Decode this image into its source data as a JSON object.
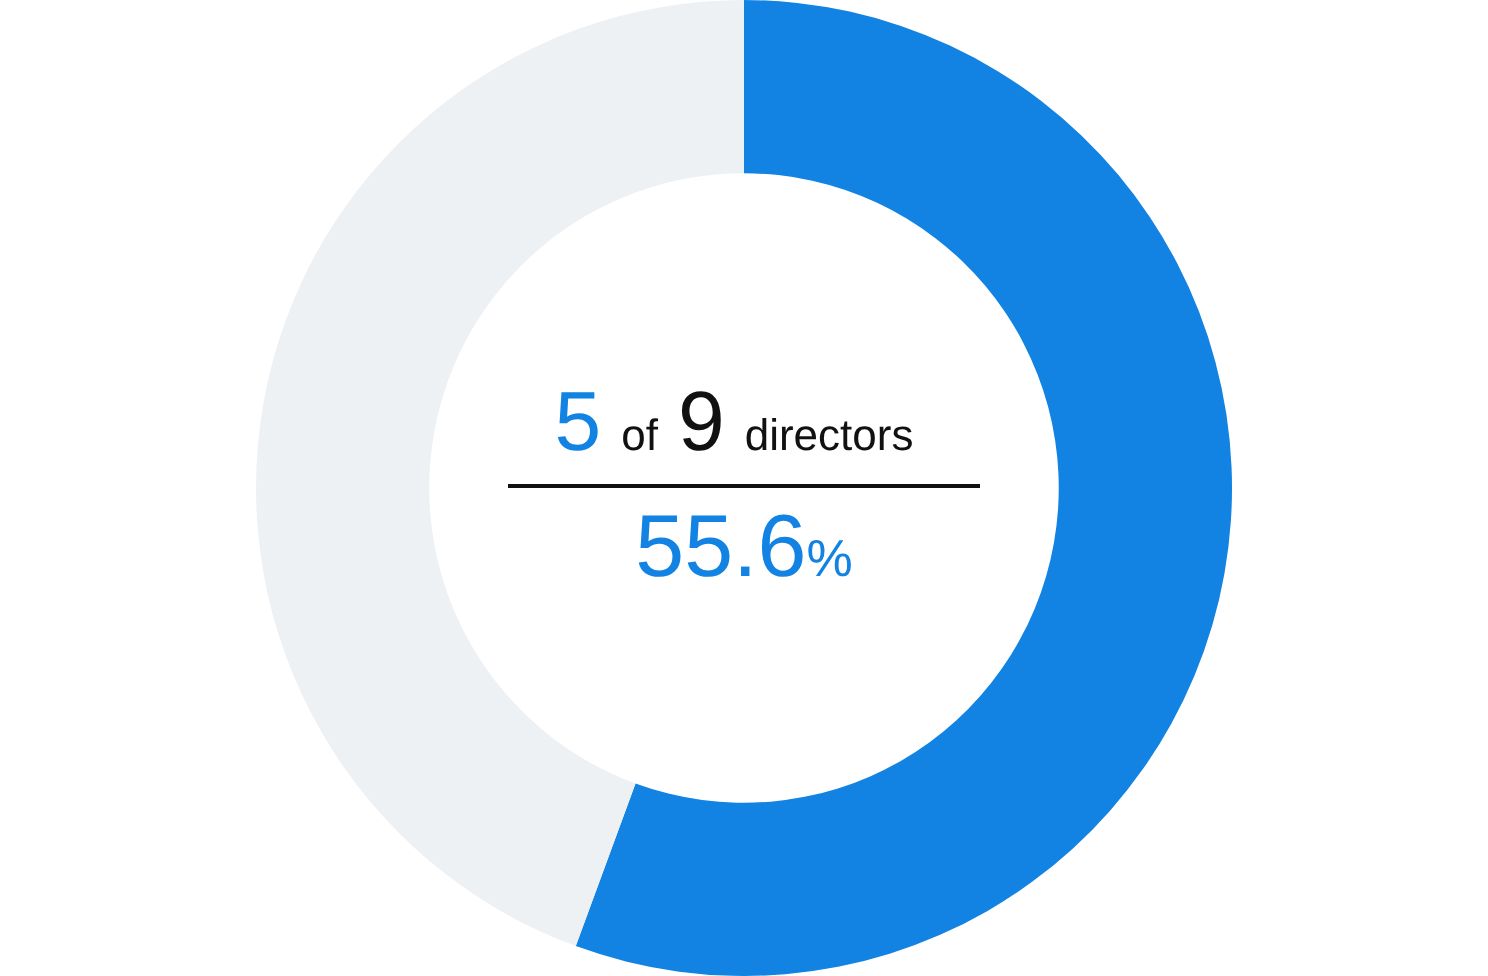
{
  "chart_data": {
    "type": "donut",
    "categories": [
      null,
      null
    ],
    "values": [
      55.6,
      44.4
    ],
    "colors": [
      "#1283e3",
      "#eef1f4"
    ],
    "annotations": [
      "5 of 9 directors",
      "55.6%"
    ],
    "legend": false
  }
}
